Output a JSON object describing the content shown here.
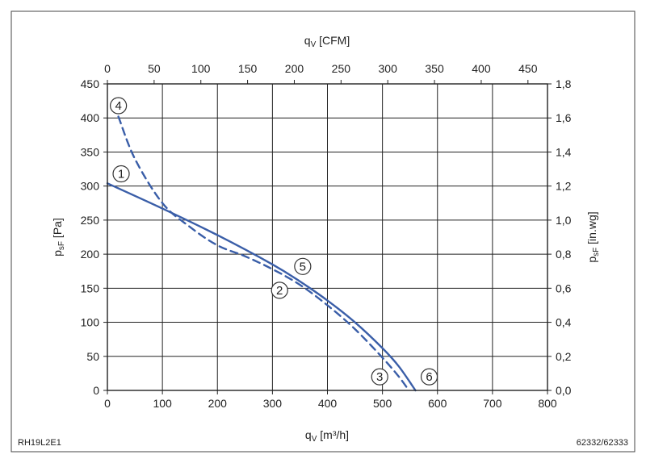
{
  "chart_data": {
    "type": "line",
    "figure_code_left": "RH19L2E1",
    "figure_code_right": "62332/62333",
    "x_bottom": {
      "label": "q",
      "label_sub": "V",
      "label_unit": " [m³/h]",
      "range": [
        0,
        800
      ],
      "ticks": [
        0,
        100,
        200,
        300,
        400,
        500,
        600,
        700,
        800
      ]
    },
    "x_top": {
      "label": "q",
      "label_sub": "V",
      "label_unit": " [CFM]",
      "range": [
        0,
        470.9
      ],
      "ticks": [
        0,
        50,
        100,
        150,
        200,
        250,
        300,
        350,
        400,
        450
      ]
    },
    "y_left": {
      "label": "p",
      "label_sub": "sF",
      "label_unit": " [Pa]",
      "range": [
        0,
        450
      ],
      "ticks": [
        0,
        50,
        100,
        150,
        200,
        250,
        300,
        350,
        400,
        450
      ]
    },
    "y_right": {
      "label": "p",
      "label_sub": "sF",
      "label_unit": " [in.wg]",
      "range": [
        0,
        1.8
      ],
      "ticks": [
        "0,0",
        "0,2",
        "0,4",
        "0,6",
        "0,8",
        "1,0",
        "1,2",
        "1,4",
        "1,6",
        "1,8"
      ]
    },
    "grid": true,
    "series": [
      {
        "name": "solid",
        "style": "solid",
        "color": "#3a5ea8",
        "x": [
          0,
          100,
          200,
          300,
          350,
          400,
          450,
          500,
          530,
          560
        ],
        "y": [
          304,
          267,
          228,
          185,
          160,
          132,
          100,
          62,
          35,
          0
        ]
      },
      {
        "name": "dashed",
        "style": "dashed",
        "color": "#3a5ea8",
        "x": [
          20,
          50,
          100,
          150,
          200,
          250,
          300,
          350,
          400,
          450,
          500,
          530,
          548
        ],
        "y": [
          402,
          340,
          275,
          240,
          213,
          197,
          178,
          155,
          125,
          90,
          48,
          20,
          0
        ]
      }
    ],
    "markers": [
      {
        "label": "1",
        "x": 25,
        "y": 318
      },
      {
        "label": "2",
        "x": 313,
        "y": 147
      },
      {
        "label": "3",
        "x": 495,
        "y": 20
      },
      {
        "label": "4",
        "x": 20,
        "y": 418
      },
      {
        "label": "5",
        "x": 355,
        "y": 182
      },
      {
        "label": "6",
        "x": 585,
        "y": 20
      }
    ]
  }
}
